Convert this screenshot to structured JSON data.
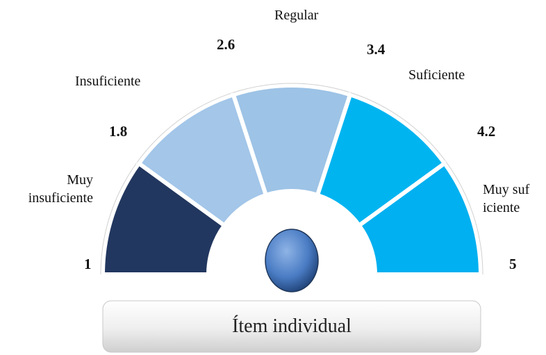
{
  "gauge": {
    "ticks": [
      "1",
      "1.8",
      "2.6",
      "3.4",
      "4.2",
      "5"
    ],
    "segments": [
      {
        "label": "Muy insuficiente",
        "color": "#22375f"
      },
      {
        "label": "Insuficiente",
        "color": "#a3c6e9"
      },
      {
        "label": "Regular",
        "color": "#9dc3e6"
      },
      {
        "label": "Suficiente",
        "color": "#00b4f0"
      },
      {
        "label": "Muy suficiente",
        "color": "#00b0f0"
      }
    ]
  },
  "button": {
    "label": "Ítem individual"
  }
}
